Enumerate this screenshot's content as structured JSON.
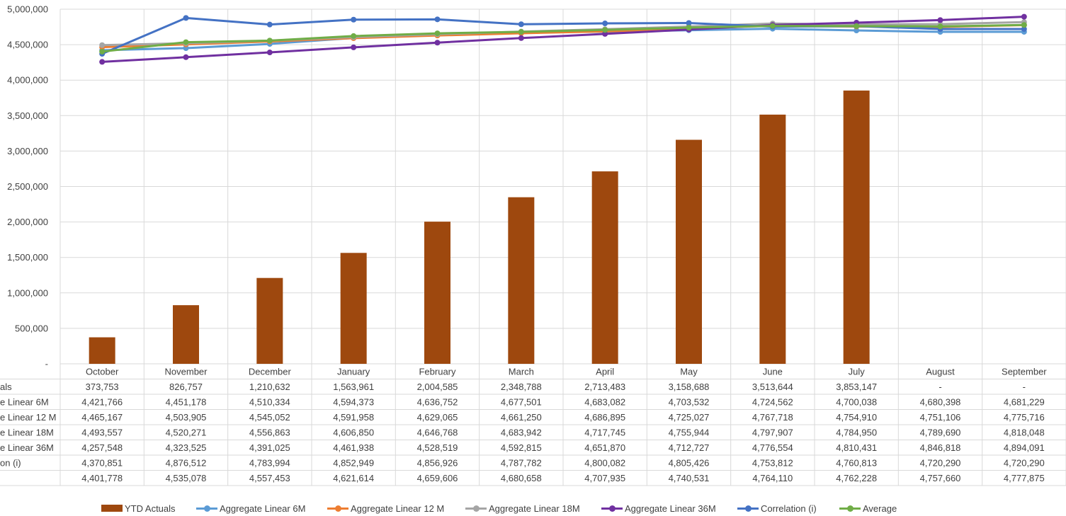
{
  "chart_data": {
    "type": "bar",
    "categories": [
      "October",
      "November",
      "December",
      "January",
      "February",
      "March",
      "April",
      "May",
      "June",
      "July",
      "August",
      "September"
    ],
    "y_axis": {
      "ylim": [
        0,
        5000000
      ],
      "tick_labels": [
        "-",
        "500,000",
        "1,000,000",
        "1,500,000",
        "2,000,000",
        "2,500,000",
        "3,000,000",
        "3,500,000",
        "4,000,000",
        "4,500,000",
        "5,000,000"
      ]
    },
    "grid": true,
    "legend_position": "bottom",
    "series": [
      {
        "name": "YTD Actuals",
        "type": "bar",
        "color": "#9E480E",
        "row_label": "als",
        "values": [
          373753,
          826757,
          1210632,
          1563961,
          2004585,
          2348788,
          2713483,
          3158688,
          3513644,
          3853147,
          null,
          null
        ],
        "labels": [
          "373,753",
          "826,757",
          "1,210,632",
          "1,563,961",
          "2,004,585",
          "2,348,788",
          "2,713,483",
          "3,158,688",
          "3,513,644",
          "3,853,147",
          "-",
          "-"
        ]
      },
      {
        "name": "Aggregate Linear 6M",
        "type": "line",
        "color": "#5B9BD5",
        "row_label": "e Linear 6M",
        "values": [
          4421766,
          4451178,
          4510334,
          4594373,
          4636752,
          4677501,
          4683082,
          4703532,
          4724562,
          4700038,
          4680398,
          4681229
        ],
        "labels": [
          "4,421,766",
          "4,451,178",
          "4,510,334",
          "4,594,373",
          "4,636,752",
          "4,677,501",
          "4,683,082",
          "4,703,532",
          "4,724,562",
          "4,700,038",
          "4,680,398",
          "4,681,229"
        ]
      },
      {
        "name": "Aggregate Linear 12 M",
        "type": "line",
        "color": "#ED7D31",
        "row_label": "e Linear 12 M",
        "values": [
          4465167,
          4503905,
          4545052,
          4591958,
          4629065,
          4661250,
          4686895,
          4725027,
          4767718,
          4754910,
          4751106,
          4775716
        ],
        "labels": [
          "4,465,167",
          "4,503,905",
          "4,545,052",
          "4,591,958",
          "4,629,065",
          "4,661,250",
          "4,686,895",
          "4,725,027",
          "4,767,718",
          "4,754,910",
          "4,751,106",
          "4,775,716"
        ]
      },
      {
        "name": "Aggregate Linear 18M",
        "type": "line",
        "color": "#A5A5A5",
        "row_label": "e Linear 18M",
        "values": [
          4493557,
          4520271,
          4556863,
          4606850,
          4646768,
          4683942,
          4717745,
          4755944,
          4797907,
          4784950,
          4789690,
          4818048
        ],
        "labels": [
          "4,493,557",
          "4,520,271",
          "4,556,863",
          "4,606,850",
          "4,646,768",
          "4,683,942",
          "4,717,745",
          "4,755,944",
          "4,797,907",
          "4,784,950",
          "4,789,690",
          "4,818,048"
        ]
      },
      {
        "name": "Aggregate Linear 36M",
        "type": "line",
        "color": "#7030A0",
        "row_label": "e Linear 36M",
        "values": [
          4257548,
          4323525,
          4391025,
          4461938,
          4528519,
          4592815,
          4651870,
          4712727,
          4776554,
          4810431,
          4846818,
          4894091
        ],
        "labels": [
          "4,257,548",
          "4,323,525",
          "4,391,025",
          "4,461,938",
          "4,528,519",
          "4,592,815",
          "4,651,870",
          "4,712,727",
          "4,776,554",
          "4,810,431",
          "4,846,818",
          "4,894,091"
        ]
      },
      {
        "name": "Correlation (i)",
        "type": "line",
        "color": "#4472C4",
        "row_label": "on (i)",
        "values": [
          4370851,
          4876512,
          4783994,
          4852949,
          4856926,
          4787782,
          4800082,
          4805426,
          4753812,
          4760813,
          4720290,
          4720290
        ],
        "labels": [
          "4,370,851",
          "4,876,512",
          "4,783,994",
          "4,852,949",
          "4,856,926",
          "4,787,782",
          "4,800,082",
          "4,805,426",
          "4,753,812",
          "4,760,813",
          "4,720,290",
          "4,720,290"
        ]
      },
      {
        "name": "Average",
        "type": "line",
        "color": "#70AD47",
        "row_label": "",
        "values": [
          4401778,
          4535078,
          4557453,
          4621614,
          4659606,
          4680658,
          4707935,
          4740531,
          4764110,
          4762228,
          4757660,
          4777875
        ],
        "labels": [
          "4,401,778",
          "4,535,078",
          "4,557,453",
          "4,621,614",
          "4,659,606",
          "4,680,658",
          "4,707,935",
          "4,740,531",
          "4,764,110",
          "4,762,228",
          "4,757,660",
          "4,777,875"
        ]
      }
    ]
  },
  "legend": {
    "items": [
      {
        "label": "YTD Actuals",
        "kind": "bar",
        "color": "#9E480E"
      },
      {
        "label": "Aggregate Linear 6M",
        "kind": "line",
        "color": "#5B9BD5"
      },
      {
        "label": "Aggregate Linear 12 M",
        "kind": "line",
        "color": "#ED7D31"
      },
      {
        "label": "Aggregate Linear 18M",
        "kind": "line",
        "color": "#A5A5A5"
      },
      {
        "label": "Aggregate Linear 36M",
        "kind": "line",
        "color": "#7030A0"
      },
      {
        "label": "Correlation (i)",
        "kind": "line",
        "color": "#4472C4"
      },
      {
        "label": "Average",
        "kind": "line",
        "color": "#70AD47"
      }
    ]
  }
}
